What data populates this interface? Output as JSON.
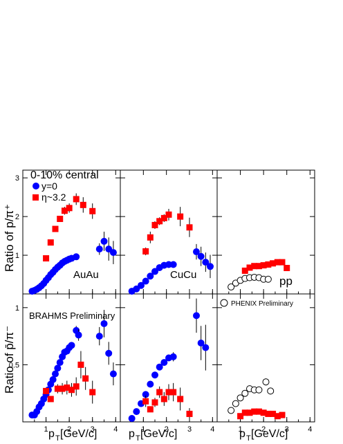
{
  "labels": {
    "ylabel_top": "Ratio of p/π⁺",
    "ylabel_bottom": "Ratio of p̄/π⁻",
    "xlabel": "p",
    "xlabel_sub": "T",
    "xlabel_unit": " [GeV/c]",
    "centrality": "0-10% central",
    "legend_y0": "y=0",
    "legend_eta": "η~3.2",
    "brahms": "BRAHMS Preliminary",
    "phenix": "PHENIX Preliminary",
    "panel_auau": "AuAu",
    "panel_cucu": "CuCu",
    "panel_pp": "pp"
  },
  "colors": {
    "y0": "#0000ff",
    "eta": "#ff0000",
    "pp": "#000000"
  },
  "chart_data": {
    "type": "scatter",
    "x_ticks": [
      1,
      2,
      3,
      4
    ],
    "xlim": [
      0.0,
      4.2
    ],
    "top": {
      "ylim": [
        0,
        3.2
      ],
      "y_ticks": [
        1,
        2,
        3
      ],
      "panels": [
        {
          "name": "AuAu",
          "y0": {
            "x": [
              0.4,
              0.5,
              0.6,
              0.7,
              0.8,
              0.9,
              1.0,
              1.1,
              1.2,
              1.3,
              1.4,
              1.5,
              1.6,
              1.7,
              1.8,
              1.9,
              2.0,
              2.1,
              2.3,
              3.3,
              3.5,
              3.7,
              3.9
            ],
            "y": [
              0.07,
              0.09,
              0.12,
              0.16,
              0.21,
              0.27,
              0.35,
              0.42,
              0.5,
              0.56,
              0.63,
              0.69,
              0.74,
              0.8,
              0.84,
              0.87,
              0.9,
              0.92,
              0.96,
              1.16,
              1.36,
              1.16,
              1.07
            ],
            "err": [
              0,
              0,
              0,
              0,
              0,
              0,
              0,
              0,
              0,
              0,
              0,
              0,
              0,
              0,
              0,
              0,
              0,
              0,
              0,
              0.15,
              0.25,
              0.3,
              0.3
            ]
          },
          "eta": {
            "x": [
              1.0,
              1.2,
              1.4,
              1.6,
              1.8,
              2.0,
              2.3,
              2.6,
              3.0
            ],
            "y": [
              0.92,
              1.33,
              1.68,
              1.94,
              2.15,
              2.22,
              2.45,
              2.3,
              2.14
            ],
            "err": [
              0.07,
              0,
              0,
              0,
              0.1,
              0.12,
              0.15,
              0.2,
              0.2
            ]
          }
        },
        {
          "name": "CuCu",
          "y0": {
            "x": [
              0.5,
              0.7,
              0.9,
              1.1,
              1.3,
              1.5,
              1.7,
              1.9,
              2.1,
              2.3,
              3.3,
              3.5,
              3.7,
              3.9
            ],
            "y": [
              0.07,
              0.13,
              0.22,
              0.33,
              0.46,
              0.58,
              0.68,
              0.74,
              0.76,
              0.76,
              1.09,
              0.97,
              0.82,
              0.71
            ],
            "err": [
              0,
              0,
              0,
              0,
              0,
              0,
              0,
              0,
              0,
              0,
              0.2,
              0.25,
              0.25,
              0.3
            ]
          },
          "eta": {
            "x": [
              1.1,
              1.3,
              1.5,
              1.7,
              1.9,
              2.1,
              2.6,
              3.0
            ],
            "y": [
              1.1,
              1.46,
              1.78,
              1.88,
              1.96,
              2.05,
              2.0,
              1.72
            ],
            "err": [
              0.1,
              0.15,
              0.1,
              0.1,
              0.1,
              0.15,
              0.25,
              0.25
            ]
          }
        },
        {
          "name": "pp",
          "pp": {
            "x": [
              0.6,
              0.8,
              1.0,
              1.2,
              1.4,
              1.6,
              1.8,
              2.0,
              2.2
            ],
            "y": [
              0.18,
              0.28,
              0.35,
              0.4,
              0.42,
              0.43,
              0.42,
              0.38,
              0.38
            ],
            "err": [
              0,
              0,
              0,
              0,
              0,
              0,
              0,
              0,
              0
            ]
          },
          "eta": {
            "x": [
              1.2,
              1.4,
              1.6,
              1.8,
              2.0,
              2.2,
              2.4,
              2.6,
              2.8,
              3.0
            ],
            "y": [
              0.6,
              0.68,
              0.72,
              0.72,
              0.74,
              0.76,
              0.79,
              0.82,
              0.82,
              0.67
            ],
            "err": [
              0,
              0,
              0,
              0,
              0,
              0,
              0,
              0,
              0,
              0
            ]
          }
        }
      ]
    },
    "bottom": {
      "ylim": [
        0,
        1.12
      ],
      "y_ticks": [
        0.5,
        1
      ],
      "panels": [
        {
          "name": "AuAu",
          "y0": {
            "x": [
              0.4,
              0.5,
              0.6,
              0.7,
              0.8,
              0.9,
              1.0,
              1.1,
              1.2,
              1.3,
              1.4,
              1.5,
              1.6,
              1.7,
              1.8,
              1.9,
              2.0,
              2.1,
              2.3,
              2.4,
              3.3,
              3.5,
              3.7,
              3.9
            ],
            "y": [
              0.06,
              0.06,
              0.09,
              0.13,
              0.16,
              0.2,
              0.24,
              0.28,
              0.33,
              0.37,
              0.42,
              0.47,
              0.52,
              0.57,
              0.61,
              0.62,
              0.65,
              0.67,
              0.8,
              0.76,
              0.75,
              0.86,
              0.6,
              0.42
            ],
            "err": [
              0,
              0,
              0,
              0,
              0,
              0,
              0,
              0,
              0,
              0,
              0,
              0,
              0,
              0,
              0,
              0,
              0,
              0,
              0.04,
              0.05,
              0.08,
              0.12,
              0.1,
              0.1
            ]
          },
          "eta": {
            "x": [
              1.0,
              1.2,
              1.5,
              1.7,
              1.9,
              2.1,
              2.3,
              2.5,
              2.7,
              3.0
            ],
            "y": [
              0.27,
              0.2,
              0.29,
              0.29,
              0.3,
              0.28,
              0.31,
              0.5,
              0.38,
              0.26
            ],
            "err": [
              0,
              0,
              0.04,
              0.05,
              0.06,
              0.06,
              0.08,
              0.12,
              0.1,
              0.1
            ]
          }
        },
        {
          "name": "CuCu",
          "y0": {
            "x": [
              0.5,
              0.7,
              0.9,
              1.1,
              1.3,
              1.5,
              1.7,
              1.9,
              2.1,
              2.3,
              3.3,
              3.5,
              3.7
            ],
            "y": [
              0.03,
              0.09,
              0.16,
              0.24,
              0.33,
              0.41,
              0.48,
              0.52,
              0.56,
              0.57,
              0.93,
              0.69,
              0.65
            ],
            "err": [
              0,
              0,
              0,
              0,
              0,
              0,
              0,
              0,
              0.03,
              0.04,
              0.15,
              0.15,
              0.2
            ]
          },
          "eta": {
            "x": [
              1.1,
              1.3,
              1.5,
              1.7,
              1.9,
              2.1,
              2.3,
              2.6,
              3.0
            ],
            "y": [
              0.18,
              0.11,
              0.17,
              0.26,
              0.2,
              0.26,
              0.26,
              0.2,
              0.07
            ],
            "err": [
              0.05,
              0,
              0.04,
              0.05,
              0.06,
              0.07,
              0.08,
              0.1,
              0.05
            ]
          }
        },
        {
          "name": "pp",
          "pp": {
            "x": [
              0.6,
              0.8,
              1.0,
              1.2,
              1.4,
              1.6,
              1.8,
              2.1,
              2.3
            ],
            "y": [
              0.1,
              0.16,
              0.21,
              0.25,
              0.29,
              0.28,
              0.28,
              0.35,
              0.27
            ],
            "err": [
              0,
              0,
              0,
              0,
              0,
              0,
              0,
              0.03,
              0.03
            ]
          },
          "eta": {
            "x": [
              1.0,
              1.2,
              1.4,
              1.6,
              1.8,
              2.0,
              2.2,
              2.4,
              2.6,
              2.8
            ],
            "y": [
              0.05,
              0.08,
              0.08,
              0.09,
              0.09,
              0.08,
              0.07,
              0.07,
              0.05,
              0.06
            ],
            "err": [
              0,
              0,
              0,
              0,
              0,
              0,
              0,
              0,
              0,
              0
            ]
          }
        }
      ]
    }
  }
}
